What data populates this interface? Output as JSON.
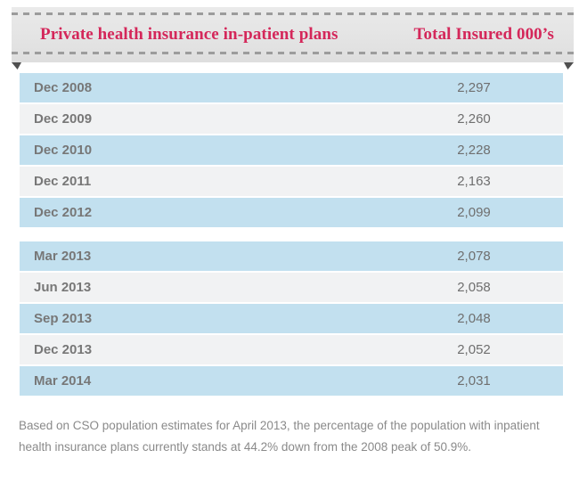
{
  "header": {
    "left_label": "Private health insurance in-patient plans",
    "right_label": "Total Insured 000’s"
  },
  "chart_data": {
    "type": "table",
    "title": "Private health insurance in-patient plans",
    "columns": [
      "Private health insurance in-patient plans",
      "Total Insured 000’s"
    ],
    "groups": [
      {
        "rows": [
          {
            "period": "Dec 2008",
            "total_insured_000s": "2,297"
          },
          {
            "period": "Dec 2009",
            "total_insured_000s": "2,260"
          },
          {
            "period": "Dec 2010",
            "total_insured_000s": "2,228"
          },
          {
            "period": "Dec 2011",
            "total_insured_000s": "2,163"
          },
          {
            "period": "Dec 2012",
            "total_insured_000s": "2,099"
          }
        ]
      },
      {
        "rows": [
          {
            "period": "Mar 2013",
            "total_insured_000s": "2,078"
          },
          {
            "period": "Jun 2013",
            "total_insured_000s": "2,058"
          },
          {
            "period": "Sep 2013",
            "total_insured_000s": "2,048"
          },
          {
            "period": "Dec 2013",
            "total_insured_000s": "2,052"
          },
          {
            "period": "Mar 2014",
            "total_insured_000s": "2,031"
          }
        ]
      }
    ],
    "values_numeric": [
      2297,
      2260,
      2228,
      2163,
      2099,
      2078,
      2058,
      2048,
      2052,
      2031
    ]
  },
  "footnote": {
    "text": "Based on CSO population estimates for April 2013, the percentage of the population with inpatient health insurance plans currently stands at 44.2% down from the 2008 peak of 50.9%."
  },
  "colors": {
    "accent_crimson": "#d4275a",
    "ribbon_background": "#e4e4e4",
    "dash_gray": "#9c9c9c",
    "row_blue": "#c2e0ef",
    "row_gray": "#f1f2f3",
    "row_label_text": "#777777",
    "row_value_text": "#6f6f6f",
    "fold_dark": "#4f4f4f",
    "footnote_text": "#8a8a8a"
  }
}
